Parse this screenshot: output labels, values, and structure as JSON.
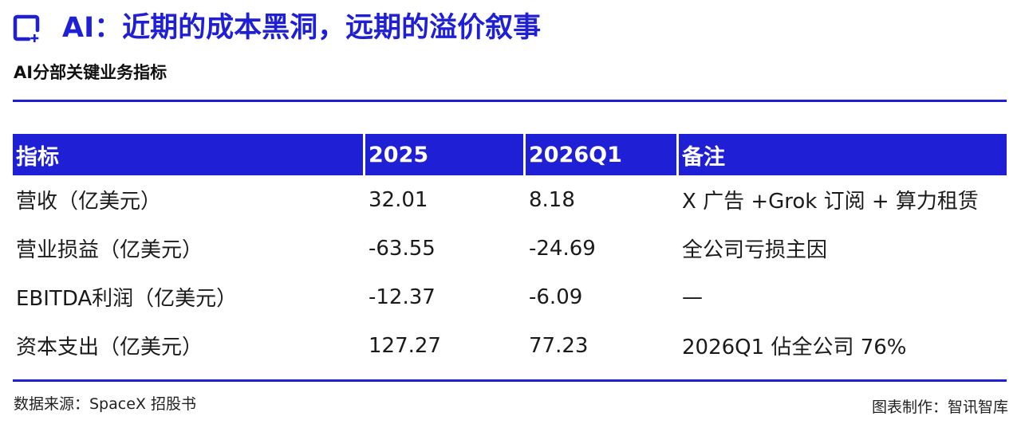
{
  "header": {
    "logo_icon": "square-plus-logo-icon",
    "title": "AI：近期的成本黑洞，远期的溢价叙事",
    "subtitle": "AI分部关键业务指标"
  },
  "table": {
    "columns": [
      "指标",
      "2025",
      "2026Q1",
      "备注"
    ],
    "rows": [
      [
        "营收（亿美元）",
        "32.01",
        "8.18",
        "X 广告 +Grok 订阅 + 算力租赁"
      ],
      [
        "营业损益（亿美元）",
        "-63.55",
        "-24.69",
        "全公司亏损主因"
      ],
      [
        "EBITDA利润（亿美元）",
        "-12.37",
        "-6.09",
        "—"
      ],
      [
        "资本支出（亿美元）",
        "127.27",
        "77.23",
        "2026Q1 佔全公司 76%"
      ]
    ]
  },
  "footer": {
    "source": "数据来源：SpaceX 招股书",
    "credit": "图表制作：智讯智库"
  },
  "colors": {
    "accent": "#1f1fd6",
    "text": "#1a1a1a",
    "header_text": "#ffffff"
  }
}
